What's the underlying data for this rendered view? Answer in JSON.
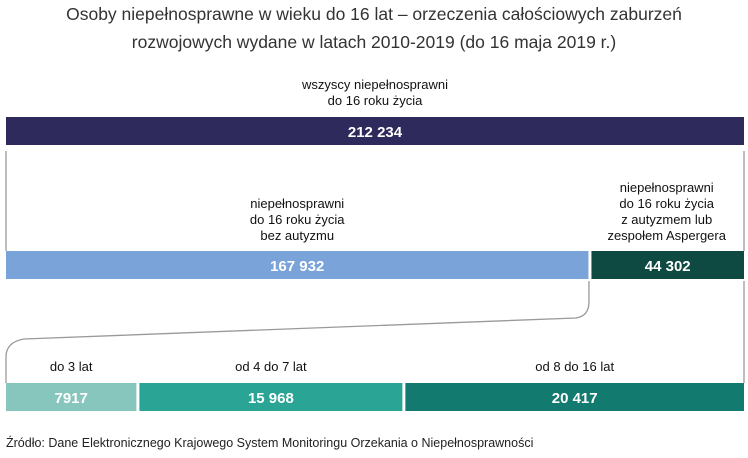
{
  "chart_data": {
    "type": "bar",
    "orientation": "horizontal-stacked-breakdown",
    "title_lines": [
      "Osoby niepełnosprawne w wieku do 16 lat – orzeczenia całościowych zaburzeń",
      "rozwojowych wydane w latach 2010-2019 (do 16 maja 2019 r.)"
    ],
    "levels": [
      {
        "segments": [
          {
            "label_lines": [
              "wszyscy niepełnosprawni",
              "do 16 roku życia"
            ],
            "value": 212234,
            "value_text": "212 234",
            "color": "#2e2a5b"
          }
        ]
      },
      {
        "segments": [
          {
            "label_lines": [
              "niepełnosprawni",
              "do 16 roku życia",
              "bez autyzmu"
            ],
            "value": 167932,
            "value_text": "167 932",
            "color": "#7aa4d9"
          },
          {
            "label_lines": [
              "niepełnosprawni",
              "do 16 roku życia",
              "z autyzmem lub",
              "zespołem Aspergera"
            ],
            "value": 44302,
            "value_text": "44 302",
            "color": "#0e4a42"
          }
        ]
      },
      {
        "breakdown_of": "44 302",
        "segments": [
          {
            "label_lines": [
              "do 3 lat"
            ],
            "value": 7917,
            "value_text": "7917",
            "color": "#86c6bc"
          },
          {
            "label_lines": [
              "od 4 do 7 lat"
            ],
            "value": 15968,
            "value_text": "15 968",
            "color": "#2aa595"
          },
          {
            "label_lines": [
              "od 8 do 16 lat"
            ],
            "value": 20417,
            "value_text": "20 417",
            "color": "#137a6f"
          }
        ]
      }
    ],
    "source": "Źródło: Dane Elektronicznego Krajowego System Monitoringu Orzekania o Niepełnosprawności"
  }
}
